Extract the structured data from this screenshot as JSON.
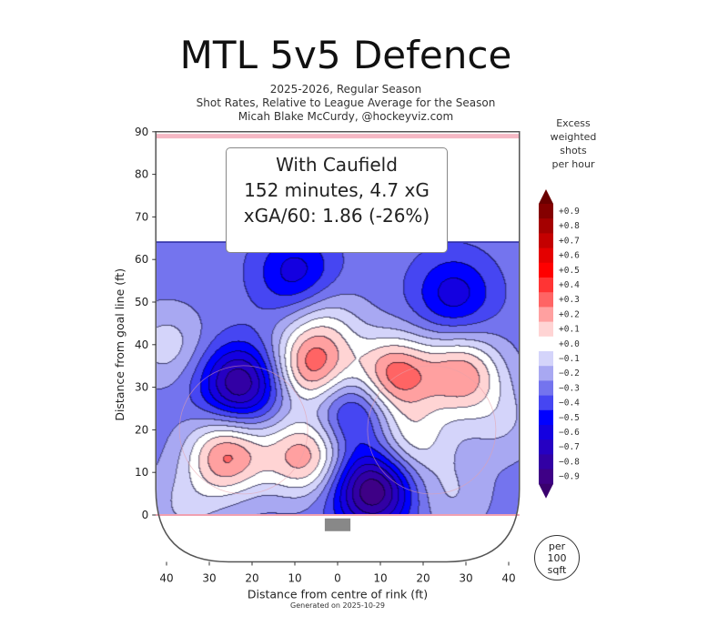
{
  "header": {
    "title": "MTL 5v5 Defence",
    "subtitle_lines": [
      "2025-2026, Regular Season",
      "Shot Rates, Relative to League Average for the Season",
      "Micah Blake McCurdy, @hockeyviz.com"
    ]
  },
  "infobox": {
    "line1": "With Caufield",
    "line2": "152 minutes, 4.7 xG",
    "line3": "xGA/60: 1.86 (-26%)"
  },
  "colorbar": {
    "title_lines": [
      "Excess",
      "weighted",
      "shots",
      "per hour"
    ],
    "tick_labels": [
      "+0.9",
      "+0.8",
      "+0.7",
      "+0.6",
      "+0.5",
      "+0.4",
      "+0.3",
      "+0.2",
      "+0.1",
      "+0.0",
      "−0.1",
      "−0.2",
      "−0.3",
      "−0.4",
      "−0.5",
      "−0.6",
      "−0.7",
      "−0.8",
      "−0.9"
    ]
  },
  "unit_note": {
    "lines": [
      "per",
      "100",
      "sqft"
    ]
  },
  "footer": "Generated on 2025-10-29",
  "chart_data": {
    "type": "heatmap",
    "title": "MTL 5v5 Defence",
    "xlabel": "Distance from centre of rink (ft)",
    "ylabel": "Distance from goal line (ft)",
    "xlim": [
      -42.5,
      42.5
    ],
    "ylim": [
      -11,
      90
    ],
    "xticks": [
      40,
      30,
      20,
      10,
      0,
      10,
      20,
      30,
      40
    ],
    "xtick_values": [
      -40,
      -30,
      -20,
      -10,
      0,
      10,
      20,
      30,
      40
    ],
    "yticks": [
      0,
      10,
      20,
      30,
      40,
      50,
      60,
      70,
      80,
      90
    ],
    "value_range": [
      -0.9,
      0.9
    ],
    "levels_step": 0.1,
    "baseline_value": -0.3,
    "data_extent_y": [
      0,
      64
    ],
    "contour_peaks": [
      {
        "x": -23,
        "y": 31,
        "value": -0.85
      },
      {
        "x": 8,
        "y": 6,
        "value": -0.95
      },
      {
        "x": -10,
        "y": 57,
        "value": -0.6
      },
      {
        "x": 27,
        "y": 52,
        "value": -0.6
      },
      {
        "x": 4,
        "y": 25,
        "value": -0.6
      },
      {
        "x": -26,
        "y": 14,
        "value": 0.25
      },
      {
        "x": -8,
        "y": 14,
        "value": 0.2
      },
      {
        "x": -6,
        "y": 35,
        "value": 0.25
      },
      {
        "x": 13,
        "y": 33,
        "value": 0.3
      },
      {
        "x": 29,
        "y": 33,
        "value": 0.2
      },
      {
        "x": 17,
        "y": 18,
        "value": 0.0
      },
      {
        "x": -40,
        "y": 40,
        "value": -0.1
      },
      {
        "x": -3,
        "y": 45,
        "value": -0.1
      },
      {
        "x": 38,
        "y": 22,
        "value": -0.15
      },
      {
        "x": -36,
        "y": 2,
        "value": -0.15
      },
      {
        "x": 26,
        "y": 5,
        "value": -0.15
      }
    ],
    "colors": {
      "negative": [
        "#d4d4fa",
        "#a8a8f2",
        "#7474ee",
        "#4646f2",
        "#0000ff",
        "#1400e0",
        "#2600c2",
        "#3200a4",
        "#3e0086"
      ],
      "zero": "#ffffff",
      "positive": [
        "#ffd4d4",
        "#ffa0a0",
        "#ff6464",
        "#ff3434",
        "#ff0000",
        "#e40000",
        "#c40000",
        "#a40000",
        "#840000"
      ]
    }
  }
}
